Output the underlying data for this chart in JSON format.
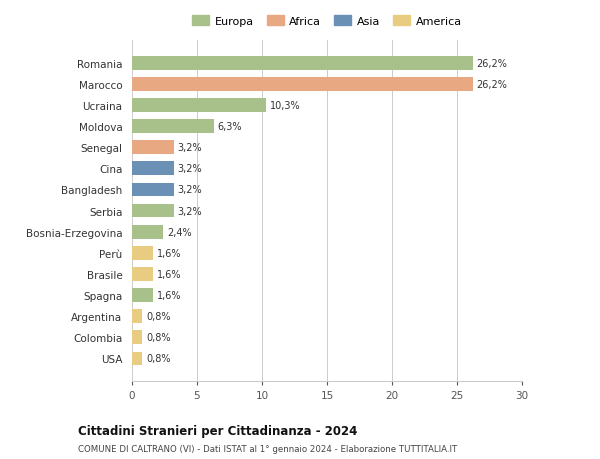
{
  "countries": [
    "Romania",
    "Marocco",
    "Ucraina",
    "Moldova",
    "Senegal",
    "Cina",
    "Bangladesh",
    "Serbia",
    "Bosnia-Erzegovina",
    "Perù",
    "Brasile",
    "Spagna",
    "Argentina",
    "Colombia",
    "USA"
  ],
  "values": [
    26.2,
    26.2,
    10.3,
    6.3,
    3.2,
    3.2,
    3.2,
    3.2,
    2.4,
    1.6,
    1.6,
    1.6,
    0.8,
    0.8,
    0.8
  ],
  "labels": [
    "26,2%",
    "26,2%",
    "10,3%",
    "6,3%",
    "3,2%",
    "3,2%",
    "3,2%",
    "3,2%",
    "2,4%",
    "1,6%",
    "1,6%",
    "1,6%",
    "0,8%",
    "0,8%",
    "0,8%"
  ],
  "continents": [
    "Europa",
    "Africa",
    "Europa",
    "Europa",
    "Africa",
    "Asia",
    "Asia",
    "Europa",
    "Europa",
    "America",
    "America",
    "Europa",
    "America",
    "America",
    "America"
  ],
  "colors": {
    "Europa": "#a8c08a",
    "Africa": "#e8a882",
    "Asia": "#6b90b5",
    "America": "#e8cc82"
  },
  "title": "Cittadini Stranieri per Cittadinanza - 2024",
  "subtitle": "COMUNE DI CALTRANO (VI) - Dati ISTAT al 1° gennaio 2024 - Elaborazione TUTTITALIA.IT",
  "xlim": [
    0,
    30
  ],
  "xticks": [
    0,
    5,
    10,
    15,
    20,
    25,
    30
  ],
  "background_color": "#ffffff",
  "grid_color": "#cccccc",
  "bar_height": 0.65,
  "legend_order": [
    "Europa",
    "Africa",
    "Asia",
    "America"
  ]
}
